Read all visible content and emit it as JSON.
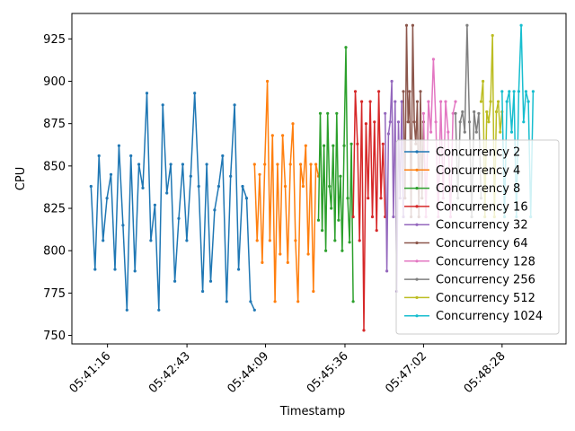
{
  "chart_data": {
    "type": "line",
    "xlabel": "Timestamp",
    "ylabel": "CPU",
    "ylim": [
      745,
      940
    ],
    "xlim": [
      "05:40:37",
      "05:49:38"
    ],
    "grid": false,
    "legend_position": "lower-right",
    "x_ticks": [
      "05:41:16",
      "05:42:43",
      "05:44:09",
      "05:45:36",
      "05:47:02",
      "05:48:28"
    ],
    "y_ticks": [
      750,
      775,
      800,
      825,
      850,
      875,
      900,
      925
    ],
    "marker": "point",
    "series": [
      {
        "name": "Concurrency 2",
        "color": "#1f77b4",
        "x_start": "05:40:58",
        "x_end": "05:43:57",
        "values": [
          838,
          789,
          856,
          806,
          831,
          845,
          789,
          862,
          815,
          765,
          856,
          788,
          851,
          837,
          893,
          806,
          827,
          765,
          886,
          834,
          851,
          782,
          819,
          851,
          806,
          844,
          893,
          838,
          776,
          851,
          782,
          824,
          838,
          856,
          770,
          844,
          886,
          789,
          838,
          831,
          770,
          765
        ]
      },
      {
        "name": "Concurrency 4",
        "color": "#ff7f0e",
        "x_start": "05:43:57",
        "x_end": "05:45:07",
        "values": [
          851,
          806,
          845,
          793,
          851,
          900,
          806,
          868,
          770,
          851,
          798,
          868,
          838,
          793,
          851,
          875,
          806,
          770,
          851,
          838,
          862,
          798,
          851,
          776,
          851,
          844
        ]
      },
      {
        "name": "Concurrency 8",
        "color": "#2ca02c",
        "x_start": "05:45:07",
        "x_end": "05:45:45",
        "values": [
          818,
          881,
          812,
          862,
          800,
          881,
          838,
          825,
          862,
          806,
          881,
          818,
          844,
          800,
          862,
          920,
          831,
          805,
          863,
          770
        ]
      },
      {
        "name": "Concurrency 16",
        "color": "#d62728",
        "x_start": "05:45:45",
        "x_end": "05:46:20",
        "values": [
          820,
          894,
          863,
          806,
          888,
          753,
          875,
          831,
          888,
          820,
          876,
          812,
          894,
          831,
          863,
          820
        ]
      },
      {
        "name": "Concurrency 32",
        "color": "#9467bd",
        "x_start": "05:46:20",
        "x_end": "05:46:40",
        "values": [
          881,
          788,
          869,
          876,
          900,
          820,
          888,
          776,
          876,
          831,
          888,
          820
        ]
      },
      {
        "name": "Concurrency 64",
        "color": "#8c564b",
        "x_start": "05:46:40",
        "x_end": "05:47:02",
        "values": [
          894,
          831,
          933,
          876,
          894,
          820,
          933,
          876,
          863,
          888,
          820,
          894,
          831,
          876
        ]
      },
      {
        "name": "Concurrency 128",
        "color": "#e377c2",
        "x_start": "05:47:02",
        "x_end": "05:47:37",
        "values": [
          881,
          820,
          888,
          870,
          913,
          876,
          820,
          888,
          831,
          888,
          870,
          820,
          881,
          888
        ]
      },
      {
        "name": "Concurrency 256",
        "color": "#7f7f7f",
        "x_start": "05:47:37",
        "x_end": "05:48:05",
        "values": [
          881,
          831,
          876,
          882,
          870,
          933,
          876,
          820,
          882,
          870,
          881,
          831
        ]
      },
      {
        "name": "Concurrency 512",
        "color": "#bcbd22",
        "x_start": "05:48:05",
        "x_end": "05:48:28",
        "values": [
          888,
          900,
          820,
          882,
          876,
          888,
          927,
          820,
          882,
          888,
          870,
          882
        ]
      },
      {
        "name": "Concurrency 1024",
        "color": "#17becf",
        "x_start": "05:48:28",
        "x_end": "05:49:02",
        "values": [
          894,
          820,
          888,
          894,
          870,
          894,
          820,
          894,
          933,
          876,
          894,
          888,
          820,
          894
        ]
      }
    ]
  }
}
